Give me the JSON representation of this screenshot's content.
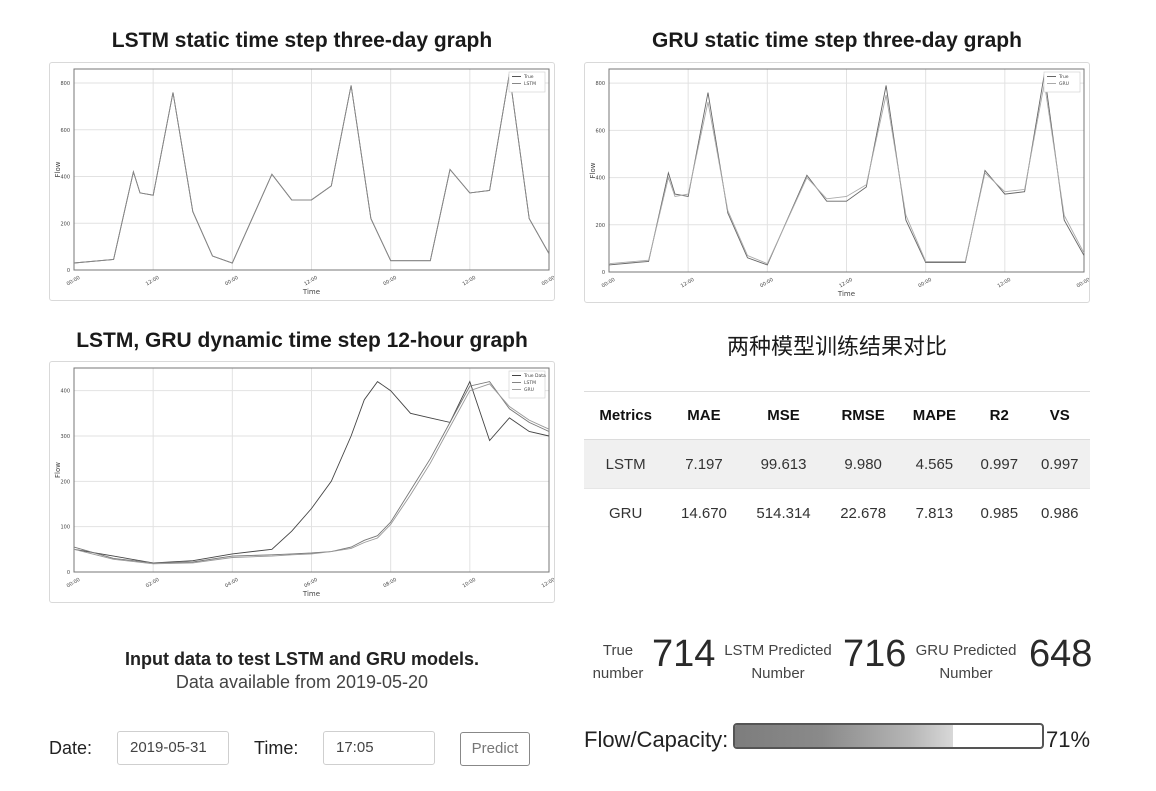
{
  "charts": {
    "lstm_static": {
      "title": "LSTM static time step three-day graph",
      "legend": [
        "True",
        "LSTM"
      ],
      "ylabel": "Flow",
      "xlabel": "Time",
      "xticks": [
        "00:00",
        "12:00",
        "00:00",
        "12:00",
        "00:00",
        "12:00",
        "00:00"
      ],
      "yticks": [
        "0",
        "200",
        "400",
        "600",
        "800"
      ]
    },
    "gru_static": {
      "title": "GRU static time step three-day graph",
      "legend": [
        "True",
        "GRU"
      ],
      "ylabel": "Flow",
      "xlabel": "Time",
      "xticks": [
        "00:00",
        "12:00",
        "00:00",
        "12:00",
        "00:00",
        "12:00",
        "00:00"
      ],
      "yticks": [
        "0",
        "200",
        "400",
        "600",
        "800"
      ]
    },
    "dynamic": {
      "title": "LSTM, GRU dynamic time step 12-hour graph",
      "legend": [
        "True Data",
        "LSTM",
        "GRU"
      ],
      "ylabel": "Flow",
      "xlabel": "Time",
      "xticks": [
        "00:00",
        "02:00",
        "04:00",
        "06:00",
        "08:00",
        "10:00",
        "12:00"
      ],
      "yticks": [
        "0",
        "100",
        "200",
        "300",
        "400"
      ]
    }
  },
  "chart_data": [
    {
      "type": "line",
      "title": "LSTM static time step three-day graph",
      "xlabel": "Time",
      "ylabel": "Flow",
      "ylim": [
        0,
        860
      ],
      "x": [
        "00:00",
        "06:00",
        "09:00",
        "10:00",
        "12:00",
        "15:00",
        "18:00",
        "21:00",
        "24:00",
        "30:00",
        "33:00",
        "36:00",
        "39:00",
        "42:00",
        "45:00",
        "48:00",
        "54:00",
        "57:00",
        "60:00",
        "63:00",
        "66:00",
        "69:00",
        "72:00"
      ],
      "series": [
        {
          "name": "True",
          "values": [
            30,
            45,
            420,
            330,
            320,
            760,
            250,
            60,
            30,
            410,
            300,
            300,
            360,
            790,
            220,
            40,
            40,
            430,
            330,
            340,
            840,
            220,
            70
          ]
        },
        {
          "name": "LSTM",
          "values": [
            30,
            45,
            420,
            330,
            320,
            760,
            250,
            60,
            30,
            410,
            300,
            300,
            360,
            790,
            220,
            40,
            40,
            430,
            330,
            340,
            840,
            220,
            70
          ]
        }
      ],
      "grid": true,
      "legend": "top-right"
    },
    {
      "type": "line",
      "title": "GRU static time step three-day graph",
      "xlabel": "Time",
      "ylabel": "Flow",
      "ylim": [
        0,
        860
      ],
      "x": [
        "00:00",
        "06:00",
        "09:00",
        "10:00",
        "12:00",
        "15:00",
        "18:00",
        "21:00",
        "24:00",
        "30:00",
        "33:00",
        "36:00",
        "39:00",
        "42:00",
        "45:00",
        "48:00",
        "54:00",
        "57:00",
        "60:00",
        "63:00",
        "66:00",
        "69:00",
        "72:00"
      ],
      "series": [
        {
          "name": "True",
          "values": [
            30,
            45,
            420,
            330,
            320,
            760,
            250,
            60,
            30,
            410,
            300,
            300,
            360,
            790,
            220,
            40,
            40,
            430,
            330,
            340,
            840,
            220,
            70
          ]
        },
        {
          "name": "GRU",
          "values": [
            35,
            50,
            400,
            320,
            330,
            720,
            260,
            70,
            35,
            400,
            310,
            320,
            370,
            750,
            240,
            45,
            45,
            420,
            340,
            350,
            800,
            240,
            80
          ]
        }
      ],
      "grid": true,
      "legend": "top-right"
    },
    {
      "type": "line",
      "title": "LSTM, GRU dynamic time step 12-hour graph",
      "xlabel": "Time",
      "ylabel": "Flow",
      "ylim": [
        0,
        450
      ],
      "x": [
        "00:00",
        "01:00",
        "02:00",
        "03:00",
        "04:00",
        "05:00",
        "05:30",
        "06:00",
        "06:30",
        "07:00",
        "07:20",
        "07:40",
        "08:00",
        "08:30",
        "09:00",
        "09:30",
        "10:00",
        "10:30",
        "11:00",
        "11:30",
        "12:00"
      ],
      "series": [
        {
          "name": "True Data",
          "values": [
            50,
            35,
            20,
            25,
            40,
            50,
            90,
            140,
            200,
            300,
            380,
            420,
            400,
            350,
            340,
            330,
            420,
            290,
            340,
            310,
            300
          ]
        },
        {
          "name": "LSTM",
          "values": [
            55,
            30,
            20,
            22,
            35,
            38,
            40,
            42,
            45,
            55,
            70,
            80,
            110,
            180,
            250,
            330,
            410,
            420,
            360,
            330,
            310
          ]
        },
        {
          "name": "GRU",
          "values": [
            50,
            28,
            18,
            20,
            32,
            35,
            38,
            40,
            45,
            52,
            65,
            75,
            105,
            170,
            240,
            320,
            400,
            415,
            365,
            335,
            315
          ]
        }
      ],
      "grid": true,
      "legend": "top-right"
    }
  ],
  "comparison": {
    "title": "两种模型训练结果对比",
    "headers": [
      "Metrics",
      "MAE",
      "MSE",
      "RMSE",
      "MAPE",
      "R2",
      "VS"
    ],
    "rows": [
      [
        "LSTM",
        "7.197",
        "99.613",
        "9.980",
        "4.565",
        "0.997",
        "0.997"
      ],
      [
        "GRU",
        "14.670",
        "514.314",
        "22.678",
        "7.813",
        "0.985",
        "0.986"
      ]
    ]
  },
  "input": {
    "title": "Input data to test LSTM and GRU models.",
    "subtitle": "Data available from 2019-05-20",
    "date_label": "Date:",
    "date_value": "2019-05-31",
    "time_label": "Time:",
    "time_value": "17:05",
    "predict_label": "Predict"
  },
  "results": {
    "true_label_1": "True",
    "true_label_2": "number",
    "true_value": "714",
    "lstm_label_1": "LSTM Predicted",
    "lstm_label_2": "Number",
    "lstm_value": "716",
    "gru_label_1": "GRU Predicted",
    "gru_label_2": "Number",
    "gru_value": "648"
  },
  "capacity": {
    "label": "Flow/Capacity:",
    "fraction": 0.71,
    "percent_text": "71%"
  }
}
